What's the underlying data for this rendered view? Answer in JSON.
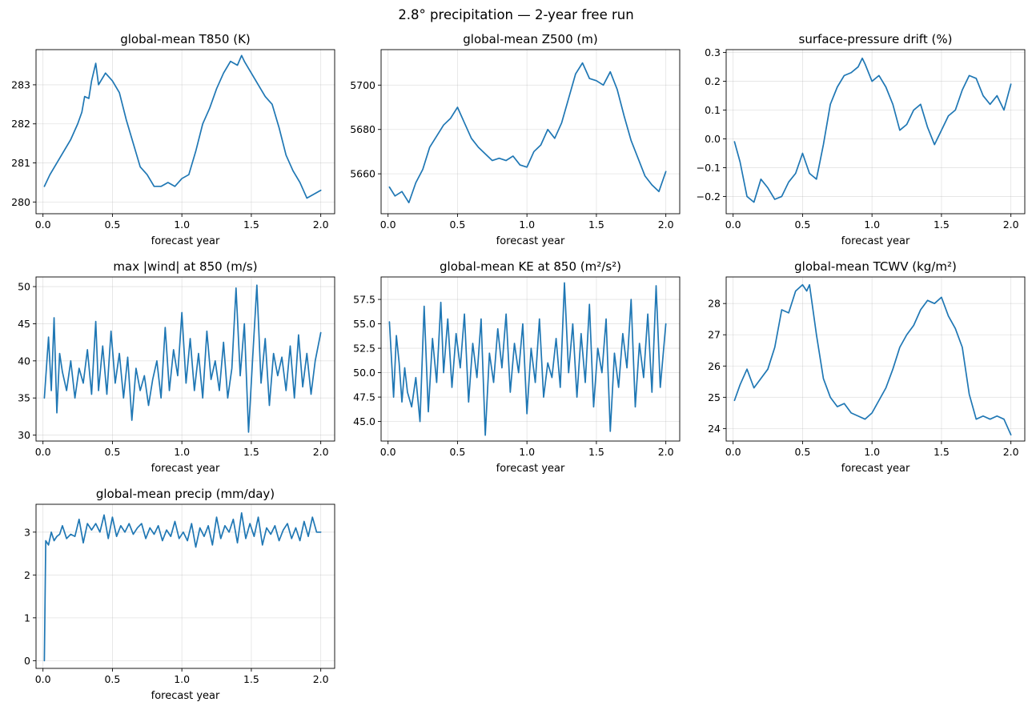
{
  "figure": {
    "title": "2.8° precipitation — 2-year free run",
    "line_color": "#1f77b4"
  },
  "chart_data": [
    {
      "type": "line",
      "title": "global-mean T850 (K)",
      "xlabel": "forecast year",
      "xlim": [
        -0.05,
        2.1
      ],
      "ylim": [
        279.7,
        283.9
      ],
      "xticks": [
        0.0,
        0.5,
        1.0,
        1.5,
        2.0
      ],
      "xtick_labels": [
        "0.0",
        "0.5",
        "1.0",
        "1.5",
        "2.0"
      ],
      "yticks": [
        280,
        281,
        282,
        283
      ],
      "ytick_labels": [
        "280",
        "281",
        "282",
        "283"
      ],
      "grid": true,
      "x": [
        0.01,
        0.05,
        0.1,
        0.15,
        0.2,
        0.25,
        0.28,
        0.3,
        0.33,
        0.35,
        0.38,
        0.4,
        0.45,
        0.5,
        0.55,
        0.6,
        0.65,
        0.7,
        0.75,
        0.8,
        0.85,
        0.9,
        0.95,
        1.0,
        1.05,
        1.1,
        1.15,
        1.2,
        1.25,
        1.3,
        1.35,
        1.4,
        1.43,
        1.45,
        1.5,
        1.55,
        1.6,
        1.65,
        1.7,
        1.75,
        1.8,
        1.85,
        1.9,
        1.95,
        2.0
      ],
      "y": [
        280.4,
        280.7,
        281.0,
        281.3,
        281.6,
        282.0,
        282.3,
        282.7,
        282.65,
        283.1,
        283.55,
        283.0,
        283.3,
        283.1,
        282.8,
        282.1,
        281.5,
        280.9,
        280.7,
        280.4,
        280.4,
        280.5,
        280.4,
        280.6,
        280.7,
        281.3,
        282.0,
        282.4,
        282.9,
        283.3,
        283.6,
        283.5,
        283.75,
        283.6,
        283.3,
        283.0,
        282.7,
        282.5,
        281.9,
        281.2,
        280.8,
        280.5,
        280.1,
        280.2,
        280.3
      ]
    },
    {
      "type": "line",
      "title": "global-mean Z500 (m)",
      "xlabel": "forecast year",
      "xlim": [
        -0.05,
        2.1
      ],
      "ylim": [
        5642,
        5716
      ],
      "xticks": [
        0.0,
        0.5,
        1.0,
        1.5,
        2.0
      ],
      "xtick_labels": [
        "0.0",
        "0.5",
        "1.0",
        "1.5",
        "2.0"
      ],
      "yticks": [
        5660,
        5680,
        5700
      ],
      "ytick_labels": [
        "5660",
        "5680",
        "5700"
      ],
      "grid": true,
      "x": [
        0.01,
        0.05,
        0.1,
        0.15,
        0.2,
        0.25,
        0.3,
        0.35,
        0.4,
        0.45,
        0.5,
        0.55,
        0.6,
        0.65,
        0.7,
        0.75,
        0.8,
        0.85,
        0.9,
        0.95,
        1.0,
        1.05,
        1.1,
        1.15,
        1.2,
        1.25,
        1.3,
        1.35,
        1.4,
        1.45,
        1.5,
        1.55,
        1.6,
        1.65,
        1.7,
        1.75,
        1.8,
        1.85,
        1.9,
        1.95,
        2.0
      ],
      "y": [
        5654,
        5650,
        5652,
        5647,
        5656,
        5662,
        5672,
        5677,
        5682,
        5685,
        5690,
        5683,
        5676,
        5672,
        5669,
        5666,
        5667,
        5666,
        5668,
        5664,
        5663,
        5670,
        5673,
        5680,
        5676,
        5683,
        5694,
        5705,
        5710,
        5703,
        5702,
        5700,
        5706,
        5698,
        5686,
        5675,
        5667,
        5659,
        5655,
        5652,
        5661
      ]
    },
    {
      "type": "line",
      "title": "surface-pressure drift (%)",
      "xlabel": "forecast year",
      "xlim": [
        -0.05,
        2.1
      ],
      "ylim": [
        -0.26,
        0.31
      ],
      "xticks": [
        0.0,
        0.5,
        1.0,
        1.5,
        2.0
      ],
      "xtick_labels": [
        "0.0",
        "0.5",
        "1.0",
        "1.5",
        "2.0"
      ],
      "yticks": [
        -0.2,
        -0.1,
        0.0,
        0.1,
        0.2,
        0.3
      ],
      "ytick_labels": [
        "−0.2",
        "−0.1",
        "0.0",
        "0.1",
        "0.2",
        "0.3"
      ],
      "grid": true,
      "x": [
        0.01,
        0.05,
        0.1,
        0.15,
        0.2,
        0.25,
        0.3,
        0.35,
        0.4,
        0.45,
        0.5,
        0.55,
        0.6,
        0.65,
        0.7,
        0.75,
        0.8,
        0.85,
        0.9,
        0.93,
        0.95,
        1.0,
        1.05,
        1.1,
        1.15,
        1.2,
        1.25,
        1.3,
        1.35,
        1.4,
        1.45,
        1.5,
        1.55,
        1.6,
        1.65,
        1.7,
        1.75,
        1.8,
        1.85,
        1.9,
        1.95,
        2.0
      ],
      "y": [
        -0.01,
        -0.08,
        -0.2,
        -0.22,
        -0.14,
        -0.17,
        -0.21,
        -0.2,
        -0.15,
        -0.12,
        -0.05,
        -0.12,
        -0.14,
        -0.02,
        0.12,
        0.18,
        0.22,
        0.23,
        0.25,
        0.28,
        0.26,
        0.2,
        0.22,
        0.18,
        0.12,
        0.03,
        0.05,
        0.1,
        0.12,
        0.04,
        -0.02,
        0.03,
        0.08,
        0.1,
        0.17,
        0.22,
        0.21,
        0.15,
        0.12,
        0.15,
        0.1,
        0.19
      ]
    },
    {
      "type": "line",
      "title": "max |wind| at 850 (m/s)",
      "xlabel": "forecast year",
      "xlim": [
        -0.05,
        2.1
      ],
      "ylim": [
        29.2,
        51.3
      ],
      "xticks": [
        0.0,
        0.5,
        1.0,
        1.5,
        2.0
      ],
      "xtick_labels": [
        "0.0",
        "0.5",
        "1.0",
        "1.5",
        "2.0"
      ],
      "yticks": [
        30,
        35,
        40,
        45,
        50
      ],
      "ytick_labels": [
        "30",
        "35",
        "40",
        "45",
        "50"
      ],
      "grid": true,
      "x": [
        0.01,
        0.04,
        0.06,
        0.08,
        0.1,
        0.12,
        0.14,
        0.17,
        0.2,
        0.23,
        0.26,
        0.29,
        0.32,
        0.35,
        0.38,
        0.4,
        0.43,
        0.46,
        0.49,
        0.52,
        0.55,
        0.58,
        0.61,
        0.64,
        0.67,
        0.7,
        0.73,
        0.76,
        0.79,
        0.82,
        0.85,
        0.88,
        0.91,
        0.94,
        0.97,
        1.0,
        1.03,
        1.06,
        1.09,
        1.12,
        1.15,
        1.18,
        1.21,
        1.24,
        1.27,
        1.3,
        1.33,
        1.36,
        1.39,
        1.42,
        1.45,
        1.48,
        1.51,
        1.54,
        1.57,
        1.6,
        1.63,
        1.66,
        1.69,
        1.72,
        1.75,
        1.78,
        1.81,
        1.84,
        1.87,
        1.9,
        1.93,
        1.96,
        2.0
      ],
      "y": [
        35.0,
        43.2,
        36.0,
        45.8,
        33.0,
        41.0,
        38.5,
        36.0,
        40.0,
        35.0,
        39.0,
        37.0,
        41.5,
        35.5,
        45.3,
        36.0,
        42.0,
        35.5,
        44.0,
        37.0,
        41.0,
        35.0,
        40.5,
        32.0,
        39.0,
        36.0,
        38.0,
        34.0,
        37.5,
        40.0,
        35.0,
        44.5,
        36.0,
        41.5,
        38.0,
        46.5,
        37.0,
        43.0,
        36.0,
        41.0,
        35.0,
        44.0,
        37.5,
        40.0,
        36.0,
        42.5,
        35.0,
        39.0,
        49.8,
        38.0,
        45.0,
        30.4,
        40.5,
        50.2,
        37.0,
        43.0,
        34.0,
        41.0,
        38.0,
        40.5,
        36.0,
        42.0,
        35.0,
        43.5,
        36.5,
        41.0,
        35.5,
        40.0,
        43.8
      ]
    },
    {
      "type": "line",
      "title": "global-mean KE at 850 (m²/s²)",
      "xlabel": "forecast year",
      "xlim": [
        -0.05,
        2.1
      ],
      "ylim": [
        43.0,
        59.8
      ],
      "xticks": [
        0.0,
        0.5,
        1.0,
        1.5,
        2.0
      ],
      "xtick_labels": [
        "0.0",
        "0.5",
        "1.0",
        "1.5",
        "2.0"
      ],
      "yticks": [
        45.0,
        47.5,
        50.0,
        52.5,
        55.0,
        57.5
      ],
      "ytick_labels": [
        "45.0",
        "47.5",
        "50.0",
        "52.5",
        "55.0",
        "57.5"
      ],
      "grid": true,
      "x": [
        0.01,
        0.04,
        0.06,
        0.08,
        0.1,
        0.12,
        0.14,
        0.17,
        0.2,
        0.23,
        0.26,
        0.29,
        0.32,
        0.35,
        0.38,
        0.4,
        0.43,
        0.46,
        0.49,
        0.52,
        0.55,
        0.58,
        0.61,
        0.64,
        0.67,
        0.7,
        0.73,
        0.76,
        0.79,
        0.82,
        0.85,
        0.88,
        0.91,
        0.94,
        0.97,
        1.0,
        1.03,
        1.06,
        1.09,
        1.12,
        1.15,
        1.18,
        1.21,
        1.24,
        1.27,
        1.3,
        1.33,
        1.36,
        1.39,
        1.42,
        1.45,
        1.48,
        1.51,
        1.54,
        1.57,
        1.6,
        1.63,
        1.66,
        1.69,
        1.72,
        1.75,
        1.78,
        1.81,
        1.84,
        1.87,
        1.9,
        1.93,
        1.96,
        2.0
      ],
      "y": [
        55.2,
        47.5,
        53.8,
        51.0,
        47.0,
        50.5,
        48.0,
        46.5,
        49.5,
        45.0,
        56.8,
        46.0,
        53.5,
        49.0,
        57.2,
        50.0,
        55.5,
        48.5,
        54.0,
        50.5,
        56.0,
        47.0,
        53.0,
        49.5,
        55.5,
        43.6,
        52.0,
        49.0,
        54.5,
        50.5,
        56.0,
        48.0,
        53.0,
        50.0,
        55.0,
        45.8,
        52.5,
        49.0,
        55.5,
        47.5,
        51.0,
        49.5,
        53.5,
        48.5,
        59.2,
        50.0,
        55.0,
        47.5,
        54.0,
        49.0,
        57.0,
        46.5,
        52.5,
        50.0,
        55.5,
        44.0,
        52.0,
        48.5,
        54.0,
        50.5,
        57.5,
        46.5,
        53.0,
        49.5,
        56.0,
        48.0,
        58.9,
        48.5,
        55.0
      ]
    },
    {
      "type": "line",
      "title": "global-mean TCWV (kg/m²)",
      "xlabel": "forecast year",
      "xlim": [
        -0.05,
        2.1
      ],
      "ylim": [
        23.6,
        28.85
      ],
      "xticks": [
        0.0,
        0.5,
        1.0,
        1.5,
        2.0
      ],
      "xtick_labels": [
        "0.0",
        "0.5",
        "1.0",
        "1.5",
        "2.0"
      ],
      "yticks": [
        24,
        25,
        26,
        27,
        28
      ],
      "ytick_labels": [
        "24",
        "25",
        "26",
        "27",
        "28"
      ],
      "grid": true,
      "x": [
        0.01,
        0.05,
        0.1,
        0.15,
        0.2,
        0.25,
        0.3,
        0.35,
        0.4,
        0.45,
        0.5,
        0.53,
        0.55,
        0.6,
        0.65,
        0.7,
        0.75,
        0.8,
        0.85,
        0.9,
        0.95,
        1.0,
        1.05,
        1.1,
        1.15,
        1.2,
        1.25,
        1.3,
        1.35,
        1.4,
        1.45,
        1.5,
        1.55,
        1.6,
        1.65,
        1.7,
        1.75,
        1.8,
        1.85,
        1.9,
        1.95,
        2.0
      ],
      "y": [
        24.9,
        25.4,
        25.9,
        25.3,
        25.6,
        25.9,
        26.6,
        27.8,
        27.7,
        28.4,
        28.6,
        28.4,
        28.6,
        27.0,
        25.6,
        25.0,
        24.7,
        24.8,
        24.5,
        24.4,
        24.3,
        24.5,
        24.9,
        25.3,
        25.9,
        26.6,
        27.0,
        27.3,
        27.8,
        28.1,
        28.0,
        28.2,
        27.6,
        27.2,
        26.6,
        25.1,
        24.3,
        24.4,
        24.3,
        24.4,
        24.3,
        23.8
      ]
    },
    {
      "type": "line",
      "title": "global-mean precip (mm/day)",
      "xlabel": "forecast year",
      "xlim": [
        -0.05,
        2.1
      ],
      "ylim": [
        -0.18,
        3.65
      ],
      "xticks": [
        0.0,
        0.5,
        1.0,
        1.5,
        2.0
      ],
      "xtick_labels": [
        "0.0",
        "0.5",
        "1.0",
        "1.5",
        "2.0"
      ],
      "yticks": [
        0,
        1,
        2,
        3
      ],
      "ytick_labels": [
        "0",
        "1",
        "2",
        "3"
      ],
      "grid": true,
      "x": [
        0.01,
        0.02,
        0.04,
        0.06,
        0.08,
        0.1,
        0.12,
        0.14,
        0.17,
        0.2,
        0.23,
        0.26,
        0.29,
        0.32,
        0.35,
        0.38,
        0.41,
        0.44,
        0.47,
        0.5,
        0.53,
        0.56,
        0.59,
        0.62,
        0.65,
        0.68,
        0.71,
        0.74,
        0.77,
        0.8,
        0.83,
        0.86,
        0.89,
        0.92,
        0.95,
        0.98,
        1.01,
        1.04,
        1.07,
        1.1,
        1.13,
        1.16,
        1.19,
        1.22,
        1.25,
        1.28,
        1.31,
        1.34,
        1.37,
        1.4,
        1.43,
        1.46,
        1.49,
        1.52,
        1.55,
        1.58,
        1.61,
        1.64,
        1.67,
        1.7,
        1.73,
        1.76,
        1.79,
        1.82,
        1.85,
        1.88,
        1.91,
        1.94,
        1.97,
        2.0
      ],
      "y": [
        0.0,
        2.8,
        2.7,
        3.0,
        2.8,
        2.9,
        2.95,
        3.15,
        2.85,
        2.95,
        2.9,
        3.3,
        2.75,
        3.2,
        3.05,
        3.2,
        3.0,
        3.4,
        2.85,
        3.35,
        2.9,
        3.15,
        3.0,
        3.2,
        2.95,
        3.1,
        3.2,
        2.85,
        3.1,
        2.95,
        3.15,
        2.8,
        3.05,
        2.9,
        3.25,
        2.85,
        3.0,
        2.8,
        3.2,
        2.65,
        3.1,
        2.9,
        3.15,
        2.7,
        3.35,
        2.85,
        3.15,
        3.0,
        3.3,
        2.75,
        3.45,
        2.85,
        3.2,
        2.9,
        3.35,
        2.7,
        3.1,
        2.95,
        3.15,
        2.8,
        3.05,
        3.2,
        2.85,
        3.1,
        2.8,
        3.25,
        2.9,
        3.35,
        3.0,
        3.0
      ]
    }
  ]
}
